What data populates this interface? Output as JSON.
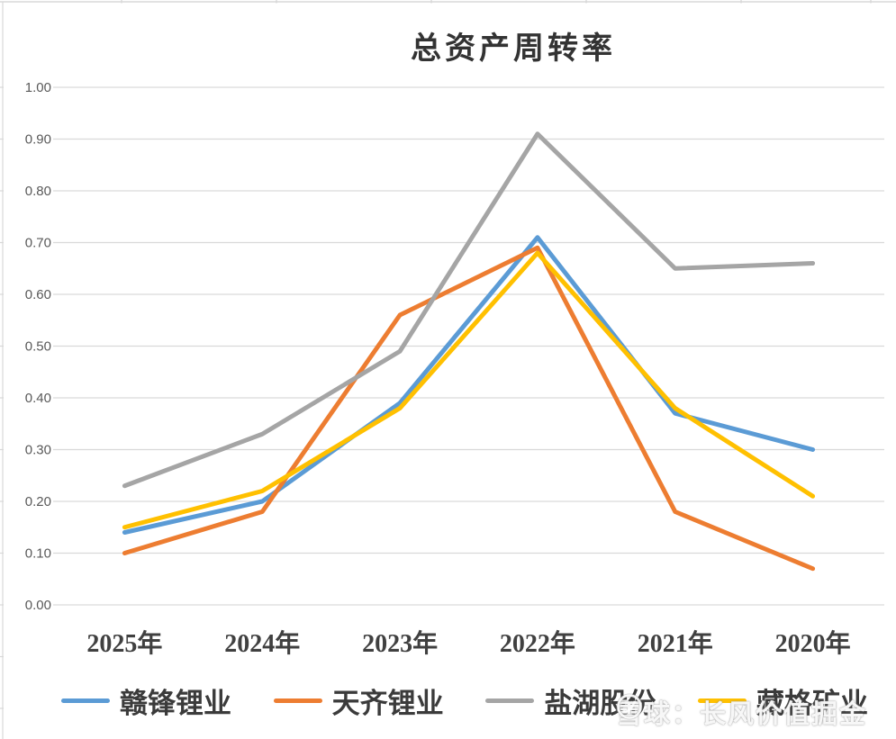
{
  "title": "总资产周转率",
  "watermark": {
    "text": "雪球：长风价值掘金",
    "logo": "snowball-logo"
  },
  "colors": {
    "gridline": "#d9d9d9",
    "sheet_line": "#d8d8d8",
    "y_tick_label": "#595959",
    "x_tick_label": "#404040",
    "title_text": "#333333",
    "legend_text": "#3b3b3b"
  },
  "chart_data": {
    "type": "line",
    "title": "总资产周转率",
    "categories": [
      "2025年",
      "2024年",
      "2023年",
      "2022年",
      "2021年",
      "2020年"
    ],
    "series": [
      {
        "name": "赣锋锂业",
        "color": "#5B9BD5",
        "values": [
          0.14,
          0.2,
          0.39,
          0.71,
          0.37,
          0.3
        ]
      },
      {
        "name": "天齐锂业",
        "color": "#ED7D31",
        "values": [
          0.1,
          0.18,
          0.56,
          0.69,
          0.18,
          0.07
        ]
      },
      {
        "name": "盐湖股份",
        "color": "#A5A5A5",
        "values": [
          0.23,
          0.33,
          0.49,
          0.91,
          0.65,
          0.66
        ]
      },
      {
        "name": "藏格矿业",
        "color": "#FFC000",
        "values": [
          0.15,
          0.22,
          0.38,
          0.68,
          0.38,
          0.21
        ]
      }
    ],
    "ylim": [
      0.0,
      1.0
    ],
    "ytick_step": 0.1,
    "ytick_labels": [
      "0.00",
      "0.10",
      "0.20",
      "0.30",
      "0.40",
      "0.50",
      "0.60",
      "0.70",
      "0.80",
      "0.90",
      "1.00"
    ],
    "xlabel": "",
    "ylabel": "",
    "grid": true,
    "legend_position": "bottom"
  }
}
